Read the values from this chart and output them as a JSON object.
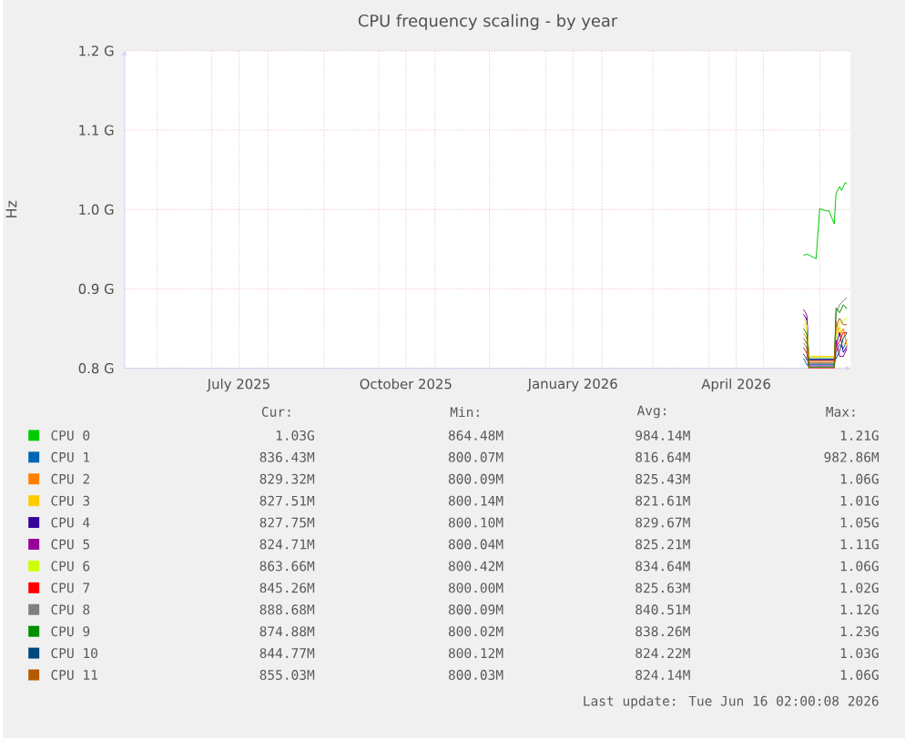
{
  "chart_data": {
    "type": "line",
    "title": "CPU frequency scaling - by year",
    "ylabel": "Hz",
    "x": [
      "2026-05-23",
      "2026-05-24",
      "2026-05-25",
      "2026-05-26",
      "2026-06-09",
      "2026-06-10",
      "2026-06-12",
      "2026-06-14",
      "2026-06-16"
    ],
    "xlim": [
      "2025-05-14",
      "2026-06-18"
    ],
    "xticks": [
      {
        "value": "2025-06-01",
        "label": null
      },
      {
        "value": "2025-07-01",
        "label": null
      },
      {
        "value": "2025-07-16",
        "label": "July 2025"
      },
      {
        "value": "2025-08-01",
        "label": null
      },
      {
        "value": "2025-09-01",
        "label": null
      },
      {
        "value": "2025-10-01",
        "label": null
      },
      {
        "value": "2025-10-16",
        "label": "October 2025"
      },
      {
        "value": "2025-11-01",
        "label": null
      },
      {
        "value": "2025-12-01",
        "label": null
      },
      {
        "value": "2026-01-01",
        "label": null
      },
      {
        "value": "2026-01-16",
        "label": "January 2026"
      },
      {
        "value": "2026-02-01",
        "label": null
      },
      {
        "value": "2026-03-01",
        "label": null
      },
      {
        "value": "2026-04-01",
        "label": null
      },
      {
        "value": "2026-04-16",
        "label": "April 2026"
      },
      {
        "value": "2026-05-01",
        "label": null
      },
      {
        "value": "2026-06-01",
        "label": null
      }
    ],
    "ylim": [
      0.8,
      1.2
    ],
    "yticks": [
      {
        "value": 0.8,
        "label": "0.8 G"
      },
      {
        "value": 0.9,
        "label": "0.9 G"
      },
      {
        "value": 1.0,
        "label": "1.0 G"
      },
      {
        "value": 1.1,
        "label": "1.1 G"
      },
      {
        "value": 1.2,
        "label": "1.2 G"
      }
    ],
    "grid": true,
    "legend": "bottom",
    "marker": "none",
    "line_style": "solid",
    "series": [
      {
        "name": "CPU 0",
        "color": "#00cc00",
        "x": [
          "2026-05-23",
          "2026-05-25",
          "2026-05-30",
          "2026-06-01",
          "2026-06-05",
          "2026-06-06",
          "2026-06-09",
          "2026-06-10",
          "2026-06-12",
          "2026-06-13",
          "2026-06-15",
          "2026-06-16"
        ],
        "values": [
          0.942,
          0.944,
          0.938,
          1.001,
          0.998,
          0.999,
          0.982,
          1.02,
          1.029,
          1.024,
          1.034,
          1.032
        ]
      },
      {
        "name": "CPU 1",
        "color": "#0066b3",
        "values": [
          0.812,
          0.809,
          0.804,
          0.8045,
          0.8045,
          0.82,
          0.83,
          0.825,
          0.836
        ]
      },
      {
        "name": "CPU 2",
        "color": "#ff8000",
        "values": [
          0.844,
          0.841,
          0.836,
          0.809,
          0.809,
          0.86,
          0.84,
          0.85,
          0.829
        ]
      },
      {
        "name": "CPU 3",
        "color": "#ffcc00",
        "values": [
          0.856,
          0.853,
          0.848,
          0.815,
          0.815,
          0.84,
          0.852,
          0.832,
          0.828
        ]
      },
      {
        "name": "CPU 4",
        "color": "#330099",
        "values": [
          0.868,
          0.865,
          0.86,
          0.8105,
          0.8105,
          0.83,
          0.845,
          0.82,
          0.828
        ]
      },
      {
        "name": "CPU 5",
        "color": "#990099",
        "values": [
          0.874,
          0.871,
          0.866,
          0.803,
          0.803,
          0.835,
          0.815,
          0.815,
          0.825
        ]
      },
      {
        "name": "CPU 6",
        "color": "#ccff00",
        "values": [
          0.862,
          0.859,
          0.854,
          0.8135,
          0.8135,
          0.845,
          0.857,
          0.86,
          0.864
        ]
      },
      {
        "name": "CPU 7",
        "color": "#ff0000",
        "values": [
          0.826,
          0.823,
          0.818,
          0.8,
          0.8,
          0.826,
          0.835,
          0.845,
          0.845
        ]
      },
      {
        "name": "CPU 8",
        "color": "#808080",
        "values": [
          0.832,
          0.829,
          0.824,
          0.806,
          0.806,
          0.87,
          0.88,
          0.885,
          0.889
        ]
      },
      {
        "name": "CPU 9",
        "color": "#008f00",
        "values": [
          0.85,
          0.847,
          0.842,
          0.8015,
          0.8015,
          0.876,
          0.87,
          0.88,
          0.875
        ]
      },
      {
        "name": "CPU 10",
        "color": "#00487d",
        "values": [
          0.818,
          0.815,
          0.81,
          0.812,
          0.812,
          0.812,
          0.822,
          0.838,
          0.845
        ]
      },
      {
        "name": "CPU 11",
        "color": "#b35a00",
        "values": [
          0.838,
          0.835,
          0.83,
          0.8075,
          0.8075,
          0.852,
          0.863,
          0.855,
          0.855
        ]
      }
    ],
    "annotations": [
      "Cur:",
      "Min:",
      "Avg:",
      "Max:",
      "1.03G",
      "864.48M",
      "984.14M",
      "1.21G",
      "836.43M",
      "800.07M",
      "816.64M",
      "982.86M",
      "829.32M",
      "800.09M",
      "825.43M",
      "1.06G",
      "827.51M",
      "800.14M",
      "821.61M",
      "1.01G",
      "827.75M",
      "800.10M",
      "829.67M",
      "1.05G",
      "824.71M",
      "800.04M",
      "825.21M",
      "1.11G",
      "863.66M",
      "800.42M",
      "834.64M",
      "1.06G",
      "845.26M",
      "800.00M",
      "825.63M",
      "1.02G",
      "888.68M",
      "800.09M",
      "840.51M",
      "1.12G",
      "874.88M",
      "800.02M",
      "838.26M",
      "1.23G",
      "844.77M",
      "800.12M",
      "824.22M",
      "1.03G",
      "855.03M",
      "800.03M",
      "824.14M",
      "1.06G",
      "Last update: Tue Jun 16 02:00:08 2026"
    ]
  }
}
